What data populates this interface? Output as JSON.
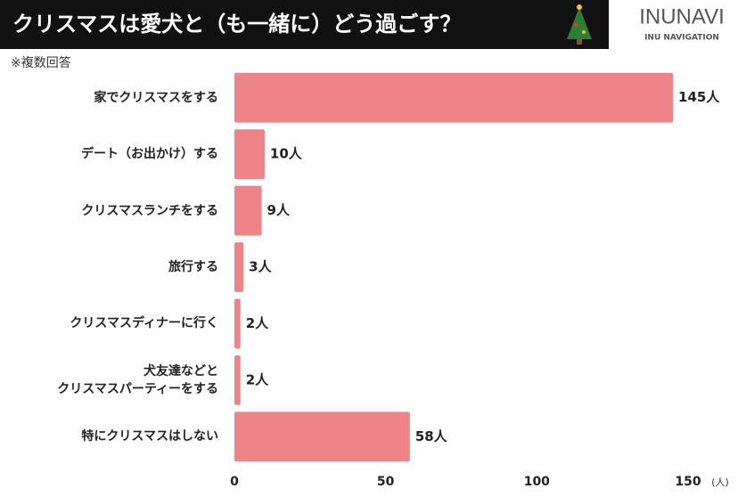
{
  "chart_data": {
    "type": "barh",
    "title": "クリスマスは愛犬と（も一緒に）どう過ごす？",
    "note": "※複数回答",
    "categories": [
      "家でクリスマスをする",
      "デート（お出かけ）する",
      "クリスマスランチをする",
      "旅行する",
      "クリスマスディナーに行く",
      "犬友達などと\nクリスマスパーティーをする",
      "特にクリスマスはしない"
    ],
    "values": [
      145,
      10,
      9,
      3,
      2,
      2,
      58
    ],
    "value_labels": [
      "145人",
      "10人",
      "9人",
      "3人",
      "2人",
      "2人",
      "58人"
    ],
    "color": "#ee8388",
    "xlim": [
      0,
      150
    ],
    "xticks": [
      0,
      50,
      100,
      150
    ],
    "x_label": "(人)",
    "grid": false
  },
  "logo": {
    "name": "INUNAVI",
    "tagline": "INU NAVIGATION"
  }
}
